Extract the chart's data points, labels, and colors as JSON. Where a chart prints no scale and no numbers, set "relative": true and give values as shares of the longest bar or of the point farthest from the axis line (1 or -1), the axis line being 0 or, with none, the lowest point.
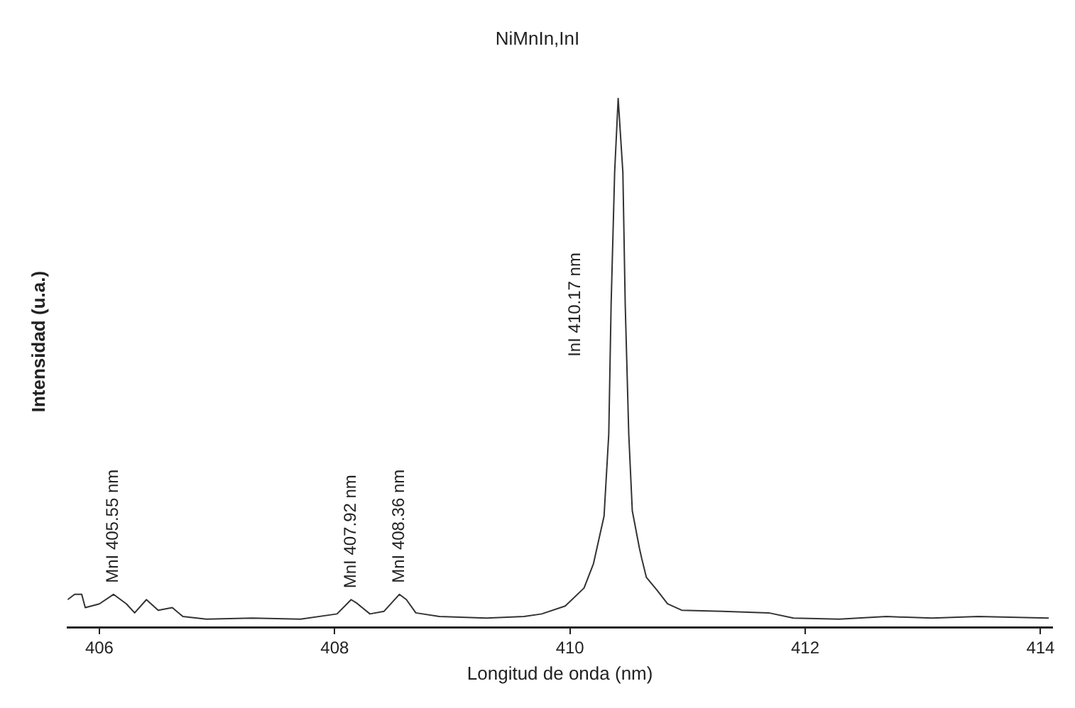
{
  "chart_data": {
    "type": "line",
    "title": "NiMnIn,InI",
    "xlabel": "Longitud de onda (nm)",
    "ylabel": "Intensidad (u.a.)",
    "relative": true,
    "xlim": [
      405.73,
      414.1
    ],
    "xticks": [
      406,
      408,
      410,
      412,
      414
    ],
    "grid": false,
    "legend": false,
    "marker": "none",
    "line_style": "solid",
    "series": [
      {
        "color": "#333333",
        "x": [
          405.73,
          405.79,
          405.85,
          405.88,
          406.0,
          406.12,
          406.23,
          406.3,
          406.4,
          406.5,
          406.62,
          406.71,
          406.91,
          407.3,
          407.71,
          408.02,
          408.14,
          408.19,
          408.3,
          408.42,
          408.55,
          408.61,
          408.69,
          408.89,
          409.29,
          409.61,
          409.76,
          409.96,
          410.12,
          410.2,
          410.23,
          410.29,
          410.33,
          410.35,
          410.38,
          410.41,
          410.45,
          410.47,
          410.5,
          410.53,
          410.59,
          410.61,
          410.65,
          410.74,
          410.83,
          410.95,
          411.3,
          411.69,
          411.9,
          412.29,
          412.69,
          413.08,
          413.47,
          414.07
        ],
        "values": [
          0.052,
          0.062,
          0.062,
          0.037,
          0.044,
          0.062,
          0.044,
          0.027,
          0.052,
          0.032,
          0.037,
          0.02,
          0.015,
          0.017,
          0.015,
          0.025,
          0.052,
          0.045,
          0.025,
          0.03,
          0.062,
          0.052,
          0.027,
          0.02,
          0.017,
          0.02,
          0.025,
          0.04,
          0.074,
          0.12,
          0.15,
          0.21,
          0.365,
          0.61,
          0.86,
          1,
          0.86,
          0.61,
          0.365,
          0.22,
          0.15,
          0.13,
          0.094,
          0.07,
          0.044,
          0.032,
          0.03,
          0.027,
          0.017,
          0.015,
          0.02,
          0.017,
          0.02,
          0.017
        ]
      }
    ],
    "annotations": [
      {
        "text": "MnI 405.55 nm",
        "x": 406.12,
        "y": 0.062
      },
      {
        "text": "MnI 407.92 nm",
        "x": 408.14,
        "y": 0.052
      },
      {
        "text": "MnI 408.36 nm",
        "x": 408.55,
        "y": 0.062
      },
      {
        "text": "InI 410.17 nm",
        "x": 410.35,
        "y": 0.61
      }
    ]
  }
}
